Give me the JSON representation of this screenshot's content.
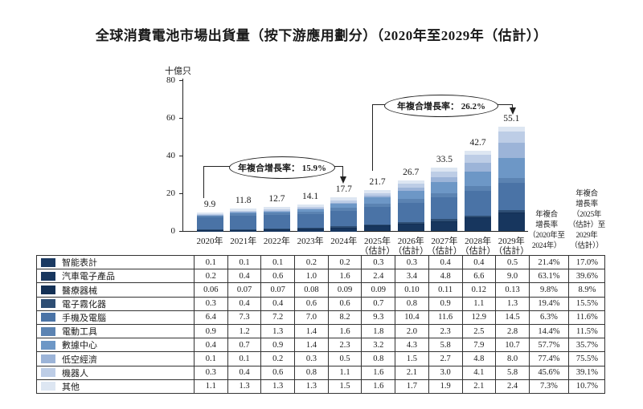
{
  "title": "全球消費電池市場出貨量（按下游應用劃分）（2020年至2029年（估計））",
  "chart_data": {
    "type": "bar",
    "stacked": true,
    "y_axis": {
      "unit_label": "十億只",
      "ticks": [
        0,
        20,
        40,
        60,
        80
      ],
      "max": 80
    },
    "categories": [
      "2020年",
      "2021年",
      "2022年",
      "2023年",
      "2024年",
      "2025年",
      "2026年",
      "2027年",
      "2028年",
      "2029年"
    ],
    "category_sublabels": [
      "",
      "",
      "",
      "",
      "",
      "（估計）",
      "（估計）",
      "（估計）",
      "（估計）",
      "（估計）"
    ],
    "totals": [
      "9.9",
      "11.8",
      "12.7",
      "14.1",
      "17.7",
      "21.7",
      "26.7",
      "33.5",
      "42.7",
      "55.1"
    ],
    "series": [
      {
        "name": "智能表計",
        "color": "#1b3a62",
        "values": [
          "0.1",
          "0.1",
          "0.1",
          "0.2",
          "0.2",
          "0.3",
          "0.3",
          "0.4",
          "0.4",
          "0.5"
        ],
        "cagr_2020_2024": "21.4%",
        "cagr_2025_2029": "17.0%"
      },
      {
        "name": "汽車電子產品",
        "color": "#17365e",
        "values": [
          "0.2",
          "0.4",
          "0.6",
          "1.0",
          "1.6",
          "2.4",
          "3.4",
          "4.8",
          "6.6",
          "9.0"
        ],
        "cagr_2020_2024": "63.1%",
        "cagr_2025_2029": "39.6%"
      },
      {
        "name": "醫療器械",
        "color": "#133055",
        "values": [
          "0.06",
          "0.07",
          "0.07",
          "0.08",
          "0.09",
          "0.09",
          "0.10",
          "0.11",
          "0.12",
          "0.13"
        ],
        "cagr_2020_2024": "9.8%",
        "cagr_2025_2029": "8.9%"
      },
      {
        "name": "電子霧化器",
        "color": "#2e4e74",
        "values": [
          "0.3",
          "0.4",
          "0.4",
          "0.6",
          "0.6",
          "0.7",
          "0.8",
          "0.9",
          "1.1",
          "1.3"
        ],
        "cagr_2020_2024": "19.4%",
        "cagr_2025_2029": "15.5%"
      },
      {
        "name": "手機及電腦",
        "color": "#4a73a6",
        "values": [
          "6.4",
          "7.3",
          "7.2",
          "7.0",
          "8.2",
          "9.3",
          "10.4",
          "11.6",
          "12.9",
          "14.5"
        ],
        "cagr_2020_2024": "6.3%",
        "cagr_2025_2029": "11.6%"
      },
      {
        "name": "電動工具",
        "color": "#5b83b2",
        "values": [
          "0.9",
          "1.2",
          "1.3",
          "1.4",
          "1.6",
          "1.8",
          "2.0",
          "2.3",
          "2.5",
          "2.8"
        ],
        "cagr_2020_2024": "14.4%",
        "cagr_2025_2029": "11.5%"
      },
      {
        "name": "數據中心",
        "color": "#6d97c6",
        "values": [
          "0.4",
          "0.7",
          "0.9",
          "1.4",
          "2.3",
          "3.2",
          "4.3",
          "5.8",
          "7.9",
          "10.7"
        ],
        "cagr_2020_2024": "57.7%",
        "cagr_2025_2029": "35.7%"
      },
      {
        "name": "低空經濟",
        "color": "#9cb4d8",
        "values": [
          "0.1",
          "0.1",
          "0.2",
          "0.3",
          "0.5",
          "0.8",
          "1.5",
          "2.7",
          "4.8",
          "8.0"
        ],
        "cagr_2020_2024": "77.4%",
        "cagr_2025_2029": "75.5%"
      },
      {
        "name": "機器人",
        "color": "#bdcde6",
        "values": [
          "0.3",
          "0.4",
          "0.6",
          "0.8",
          "1.1",
          "1.6",
          "2.1",
          "3.0",
          "4.1",
          "5.8"
        ],
        "cagr_2020_2024": "45.6%",
        "cagr_2025_2029": "39.1%"
      },
      {
        "name": "其他",
        "color": "#dde6f2",
        "values": [
          "1.1",
          "1.3",
          "1.3",
          "1.3",
          "1.5",
          "1.6",
          "1.7",
          "1.9",
          "2.1",
          "2.4"
        ],
        "cagr_2020_2024": "7.3%",
        "cagr_2025_2029": "10.7%"
      }
    ],
    "annotations": [
      {
        "text": "年複合增長率： 15.9%",
        "from_category": "2020年",
        "to_category": "2024年"
      },
      {
        "text": "年複合增長率： 26.2%",
        "from_category": "2025年",
        "to_category": "2029年"
      }
    ],
    "cagr_columns": [
      {
        "header_lines": [
          "年複合",
          "增長率",
          "（2020年至",
          "2024年）"
        ]
      },
      {
        "header_lines": [
          "年複合",
          "增長率",
          "（2025年",
          "（估計）至",
          "2029年",
          "（估計））"
        ]
      }
    ],
    "legend_position": "table-left",
    "grid": false
  }
}
